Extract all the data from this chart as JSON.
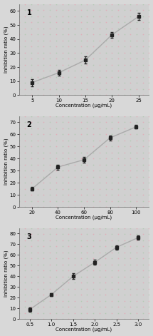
{
  "subplots": [
    {
      "label": "1",
      "x": [
        5,
        10,
        15,
        20,
        25
      ],
      "y": [
        9,
        16,
        25,
        43,
        56
      ],
      "yerr": [
        2.5,
        2.0,
        2.5,
        2.0,
        2.5
      ],
      "xlim": [
        2.5,
        27
      ],
      "ylim": [
        0,
        65
      ],
      "xticks": [
        5,
        10,
        15,
        20,
        25
      ],
      "yticks": [
        0,
        10,
        20,
        30,
        40,
        50,
        60
      ],
      "xlabel": "Concentration (μg/mL)",
      "ylabel": "Inhibition ratio (%)"
    },
    {
      "label": "2",
      "x": [
        20,
        40,
        60,
        80,
        100
      ],
      "y": [
        15,
        33,
        39,
        57,
        66
      ],
      "yerr": [
        1.5,
        2.0,
        2.5,
        2.0,
        1.5
      ],
      "xlim": [
        10,
        110
      ],
      "ylim": [
        0,
        75
      ],
      "xticks": [
        20,
        40,
        60,
        80,
        100
      ],
      "yticks": [
        0,
        10,
        20,
        30,
        40,
        50,
        60,
        70
      ],
      "xlabel": "Concentration (μg/mL)",
      "ylabel": "Inhibition ratio (%)"
    },
    {
      "label": "3",
      "x": [
        0.5,
        1.0,
        1.5,
        2.0,
        2.5,
        3.0
      ],
      "y": [
        9,
        23,
        40,
        53,
        67,
        76
      ],
      "yerr": [
        2.0,
        1.5,
        2.5,
        2.5,
        2.0,
        2.0
      ],
      "xlim": [
        0.25,
        3.25
      ],
      "ylim": [
        0,
        85
      ],
      "xticks": [
        0.5,
        1.0,
        1.5,
        2.0,
        2.5,
        3.0
      ],
      "yticks": [
        0,
        10,
        20,
        30,
        40,
        50,
        60,
        70,
        80
      ],
      "xlabel": "Concentration (μg/mL)",
      "ylabel": "Inhibition ratio (%)"
    }
  ],
  "line_color": "#aaaaaa",
  "marker_color": "#222222",
  "marker_face": "#222222",
  "bg_color": "#d8d8d8",
  "fig_bg": "#d8d8d8",
  "dot_colors_pink": "#e8a0b0",
  "dot_colors_green": "#a0c8a0"
}
